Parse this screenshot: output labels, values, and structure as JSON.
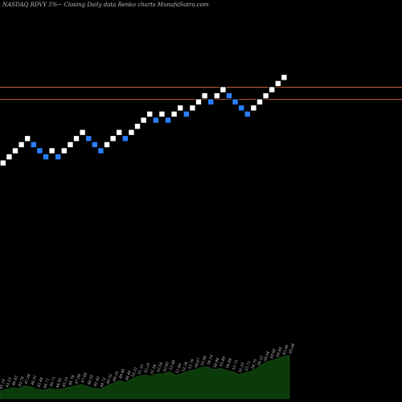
{
  "header": {
    "title": "NASDAQ RDVY 5%~  Closing Daily data  Renko  charts MunafaSutra.com"
  },
  "colors": {
    "background": "#000000",
    "up_brick": "#ffffff",
    "down_brick": "#2a7fff",
    "brick_border": "#000000",
    "resistance_line": "#c0603a",
    "volume_area": "#0b3a0b"
  },
  "chart_data": {
    "type": "renko",
    "interval": "Daily",
    "brick_size_label": "5%",
    "bricks": [
      {
        "dir": "up",
        "value": 1
      },
      {
        "dir": "up",
        "value": 2
      },
      {
        "dir": "up",
        "value": 3
      },
      {
        "dir": "up",
        "value": 4
      },
      {
        "dir": "up",
        "value": 5
      },
      {
        "dir": "down",
        "value": 4
      },
      {
        "dir": "down",
        "value": 3
      },
      {
        "dir": "down",
        "value": 2
      },
      {
        "dir": "up",
        "value": 3
      },
      {
        "dir": "down",
        "value": 2
      },
      {
        "dir": "up",
        "value": 3
      },
      {
        "dir": "up",
        "value": 4
      },
      {
        "dir": "up",
        "value": 5
      },
      {
        "dir": "up",
        "value": 6
      },
      {
        "dir": "down",
        "value": 5
      },
      {
        "dir": "down",
        "value": 4
      },
      {
        "dir": "down",
        "value": 3
      },
      {
        "dir": "up",
        "value": 4
      },
      {
        "dir": "up",
        "value": 5
      },
      {
        "dir": "up",
        "value": 6
      },
      {
        "dir": "down",
        "value": 5
      },
      {
        "dir": "up",
        "value": 6
      },
      {
        "dir": "up",
        "value": 7
      },
      {
        "dir": "up",
        "value": 8
      },
      {
        "dir": "up",
        "value": 9
      },
      {
        "dir": "down",
        "value": 8
      },
      {
        "dir": "up",
        "value": 9
      },
      {
        "dir": "down",
        "value": 8
      },
      {
        "dir": "up",
        "value": 9
      },
      {
        "dir": "up",
        "value": 10
      },
      {
        "dir": "down",
        "value": 9
      },
      {
        "dir": "up",
        "value": 10
      },
      {
        "dir": "up",
        "value": 11
      },
      {
        "dir": "up",
        "value": 12
      },
      {
        "dir": "down",
        "value": 11
      },
      {
        "dir": "up",
        "value": 12
      },
      {
        "dir": "up",
        "value": 13
      },
      {
        "dir": "down",
        "value": 12
      },
      {
        "dir": "down",
        "value": 11
      },
      {
        "dir": "down",
        "value": 10
      },
      {
        "dir": "down",
        "value": 9
      },
      {
        "dir": "up",
        "value": 10
      },
      {
        "dir": "up",
        "value": 11
      },
      {
        "dir": "up",
        "value": 12
      },
      {
        "dir": "up",
        "value": 13
      },
      {
        "dir": "up",
        "value": 14
      },
      {
        "dir": "up",
        "value": 15
      }
    ],
    "resistance_levels": [
      12.9,
      10.9
    ],
    "volume": [
      {
        "label": "45.19",
        "level": 0.18
      },
      {
        "label": "45.23",
        "level": 0.22
      },
      {
        "label": "46.83",
        "level": 0.26
      },
      {
        "label": "45.78",
        "level": 0.24
      },
      {
        "label": "47.26",
        "level": 0.3
      },
      {
        "label": "46.91",
        "level": 0.27
      },
      {
        "label": "45.44",
        "level": 0.22
      },
      {
        "label": "44.71",
        "level": 0.2
      },
      {
        "label": "45.71",
        "level": 0.24
      },
      {
        "label": "44.92",
        "level": 0.21
      },
      {
        "label": "45.15",
        "level": 0.23
      },
      {
        "label": "46.78",
        "level": 0.27
      },
      {
        "label": "47.06",
        "level": 0.3
      },
      {
        "label": "47.68",
        "level": 0.33
      },
      {
        "label": "46.55",
        "level": 0.28
      },
      {
        "label": "45.40",
        "level": 0.24
      },
      {
        "label": "44.72",
        "level": 0.22
      },
      {
        "label": "46.32",
        "level": 0.3
      },
      {
        "label": "48.18",
        "level": 0.36
      },
      {
        "label": "49.46",
        "level": 0.42
      },
      {
        "label": "48.46",
        "level": 0.38
      },
      {
        "label": "50.21",
        "level": 0.46
      },
      {
        "label": "51.33",
        "level": 0.52
      },
      {
        "label": "52.19",
        "level": 0.55
      },
      {
        "label": "51.58",
        "level": 0.52
      },
      {
        "label": "52.56",
        "level": 0.57
      },
      {
        "label": "52.82",
        "level": 0.58
      },
      {
        "label": "53.48",
        "level": 0.62
      },
      {
        "label": "51.46",
        "level": 0.54
      },
      {
        "label": "52.38",
        "level": 0.58
      },
      {
        "label": "53.79",
        "level": 0.64
      },
      {
        "label": "54.67",
        "level": 0.67
      },
      {
        "label": "55.68",
        "level": 0.72
      },
      {
        "label": "56.14",
        "level": 0.74
      },
      {
        "label": "54.96",
        "level": 0.67
      },
      {
        "label": "55.89",
        "level": 0.7
      },
      {
        "label": "54.64",
        "level": 0.66
      },
      {
        "label": "53.73",
        "level": 0.62
      },
      {
        "label": "52.35",
        "level": 0.56
      },
      {
        "label": "53.71",
        "level": 0.6
      },
      {
        "label": "54.75",
        "level": 0.64
      },
      {
        "label": "56.33",
        "level": 0.72
      },
      {
        "label": "58.04",
        "level": 0.82
      },
      {
        "label": "59.66",
        "level": 0.88
      },
      {
        "label": "60.69",
        "level": 0.92
      },
      {
        "label": "63.06",
        "level": 0.97
      },
      {
        "label": "65.08",
        "level": 1.0
      }
    ]
  }
}
